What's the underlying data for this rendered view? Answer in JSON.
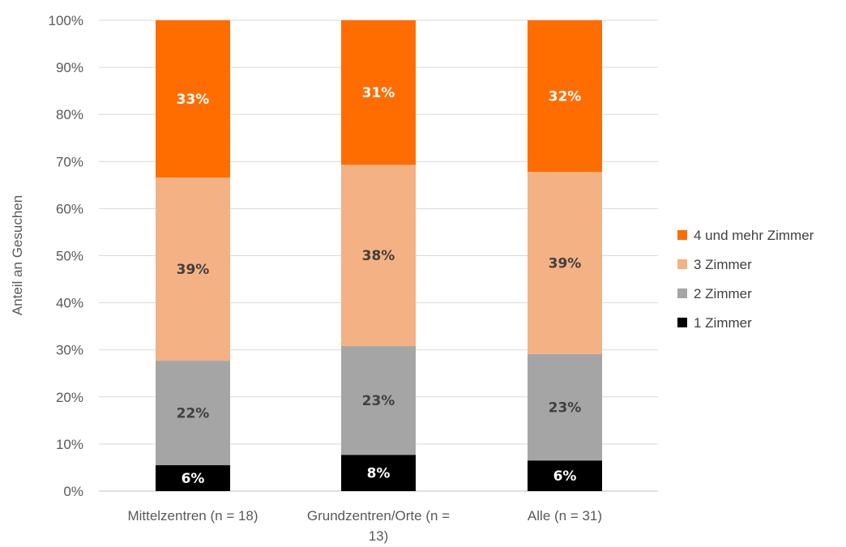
{
  "chart_data": {
    "type": "bar",
    "stacked": true,
    "title": "",
    "xlabel": "",
    "ylabel": "Anteil an Gesuchen",
    "ylim": [
      0,
      100
    ],
    "yticks": [
      "0%",
      "10%",
      "20%",
      "30%",
      "40%",
      "50%",
      "60%",
      "70%",
      "80%",
      "90%",
      "100%"
    ],
    "categories": [
      [
        "Mittelzentren (n = 18)"
      ],
      [
        "Grundzentren/Orte (n =",
        "13)"
      ],
      [
        "Alle (n = 31)"
      ]
    ],
    "series": [
      {
        "name": "1 Zimmer",
        "color": "#000000",
        "label_color": "#ffffff",
        "values": [
          5.5,
          7.7,
          6.5
        ],
        "labels": [
          "6%",
          "8%",
          "6%"
        ]
      },
      {
        "name": "2 Zimmer",
        "color": "#a5a5a5",
        "label_color": "#404040",
        "values": [
          22.2,
          23.1,
          22.6
        ],
        "labels": [
          "22%",
          "23%",
          "23%"
        ]
      },
      {
        "name": "3 Zimmer",
        "color": "#f4b183",
        "label_color": "#404040",
        "values": [
          38.9,
          38.5,
          38.7
        ],
        "labels": [
          "39%",
          "38%",
          "39%"
        ]
      },
      {
        "name": "4 und mehr Zimmer",
        "color": "#ff6d00",
        "label_color": "#ffffff",
        "values": [
          33.4,
          30.7,
          32.2
        ],
        "labels": [
          "33%",
          "31%",
          "32%"
        ]
      }
    ],
    "grid": true,
    "legend": "right"
  }
}
